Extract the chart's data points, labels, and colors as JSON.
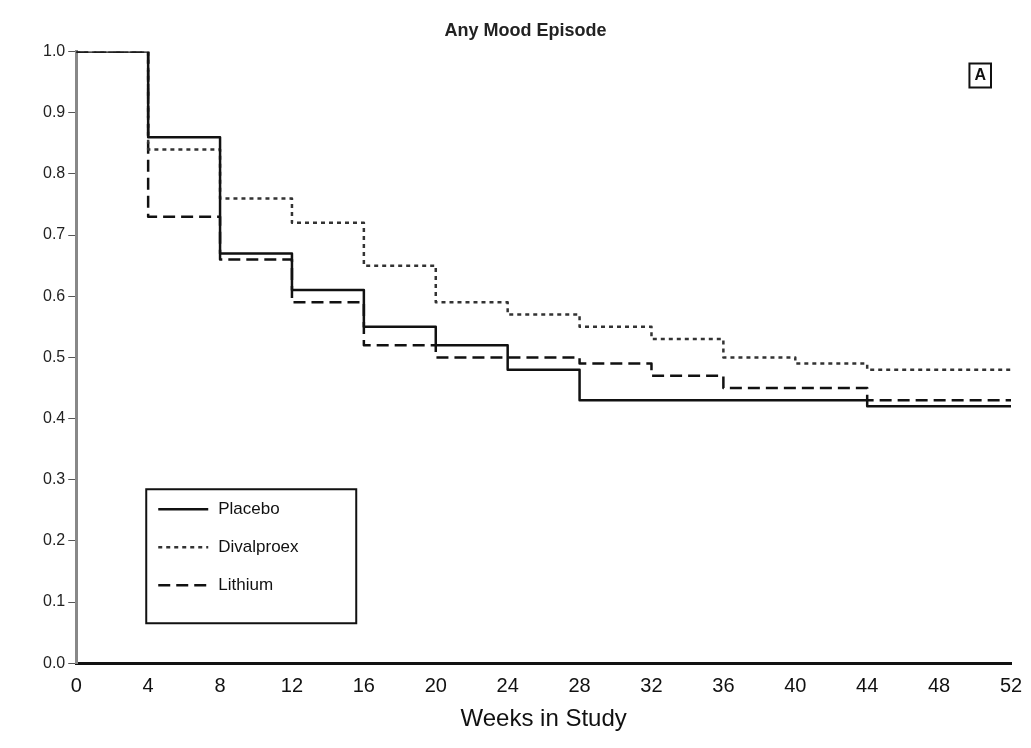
{
  "chart_data": {
    "type": "step",
    "title": "Any Mood Episode",
    "xlabel": "Weeks in Study",
    "annotations": [
      "A"
    ],
    "x": [
      0,
      4,
      8,
      12,
      16,
      20,
      24,
      28,
      32,
      36,
      40,
      44,
      48,
      52
    ],
    "series": [
      {
        "name": "Placebo",
        "color": "#111111",
        "line_style": "solid",
        "values": [
          1.0,
          0.86,
          0.67,
          0.61,
          0.55,
          0.52,
          0.48,
          0.43,
          0.43,
          0.43,
          0.43,
          0.42,
          0.42,
          0.42
        ]
      },
      {
        "name": "Divalproex",
        "color": "#333333",
        "line_style": "dotted",
        "values": [
          1.0,
          0.84,
          0.76,
          0.72,
          0.65,
          0.59,
          0.57,
          0.55,
          0.53,
          0.5,
          0.49,
          0.48,
          0.48,
          0.48
        ]
      },
      {
        "name": "Lithium",
        "color": "#111111",
        "line_style": "dashed",
        "values": [
          1.0,
          0.73,
          0.66,
          0.59,
          0.52,
          0.5,
          0.5,
          0.49,
          0.47,
          0.45,
          0.45,
          0.43,
          0.43,
          0.43
        ]
      }
    ],
    "xlim": [
      0,
      52
    ],
    "xticks": [
      0,
      4,
      8,
      12,
      16,
      20,
      24,
      28,
      32,
      36,
      40,
      44,
      48,
      52
    ],
    "ylim": [
      0,
      1
    ],
    "yticks": [
      {
        "value": 0,
        "label": "0.0"
      },
      0.1,
      0.2,
      0.3,
      0.4,
      0.5,
      0.6,
      0.7,
      0.8,
      0.9,
      {
        "value": 1,
        "label": "1.0"
      }
    ],
    "grid": false,
    "legend": "bottom left",
    "marker": "none"
  }
}
